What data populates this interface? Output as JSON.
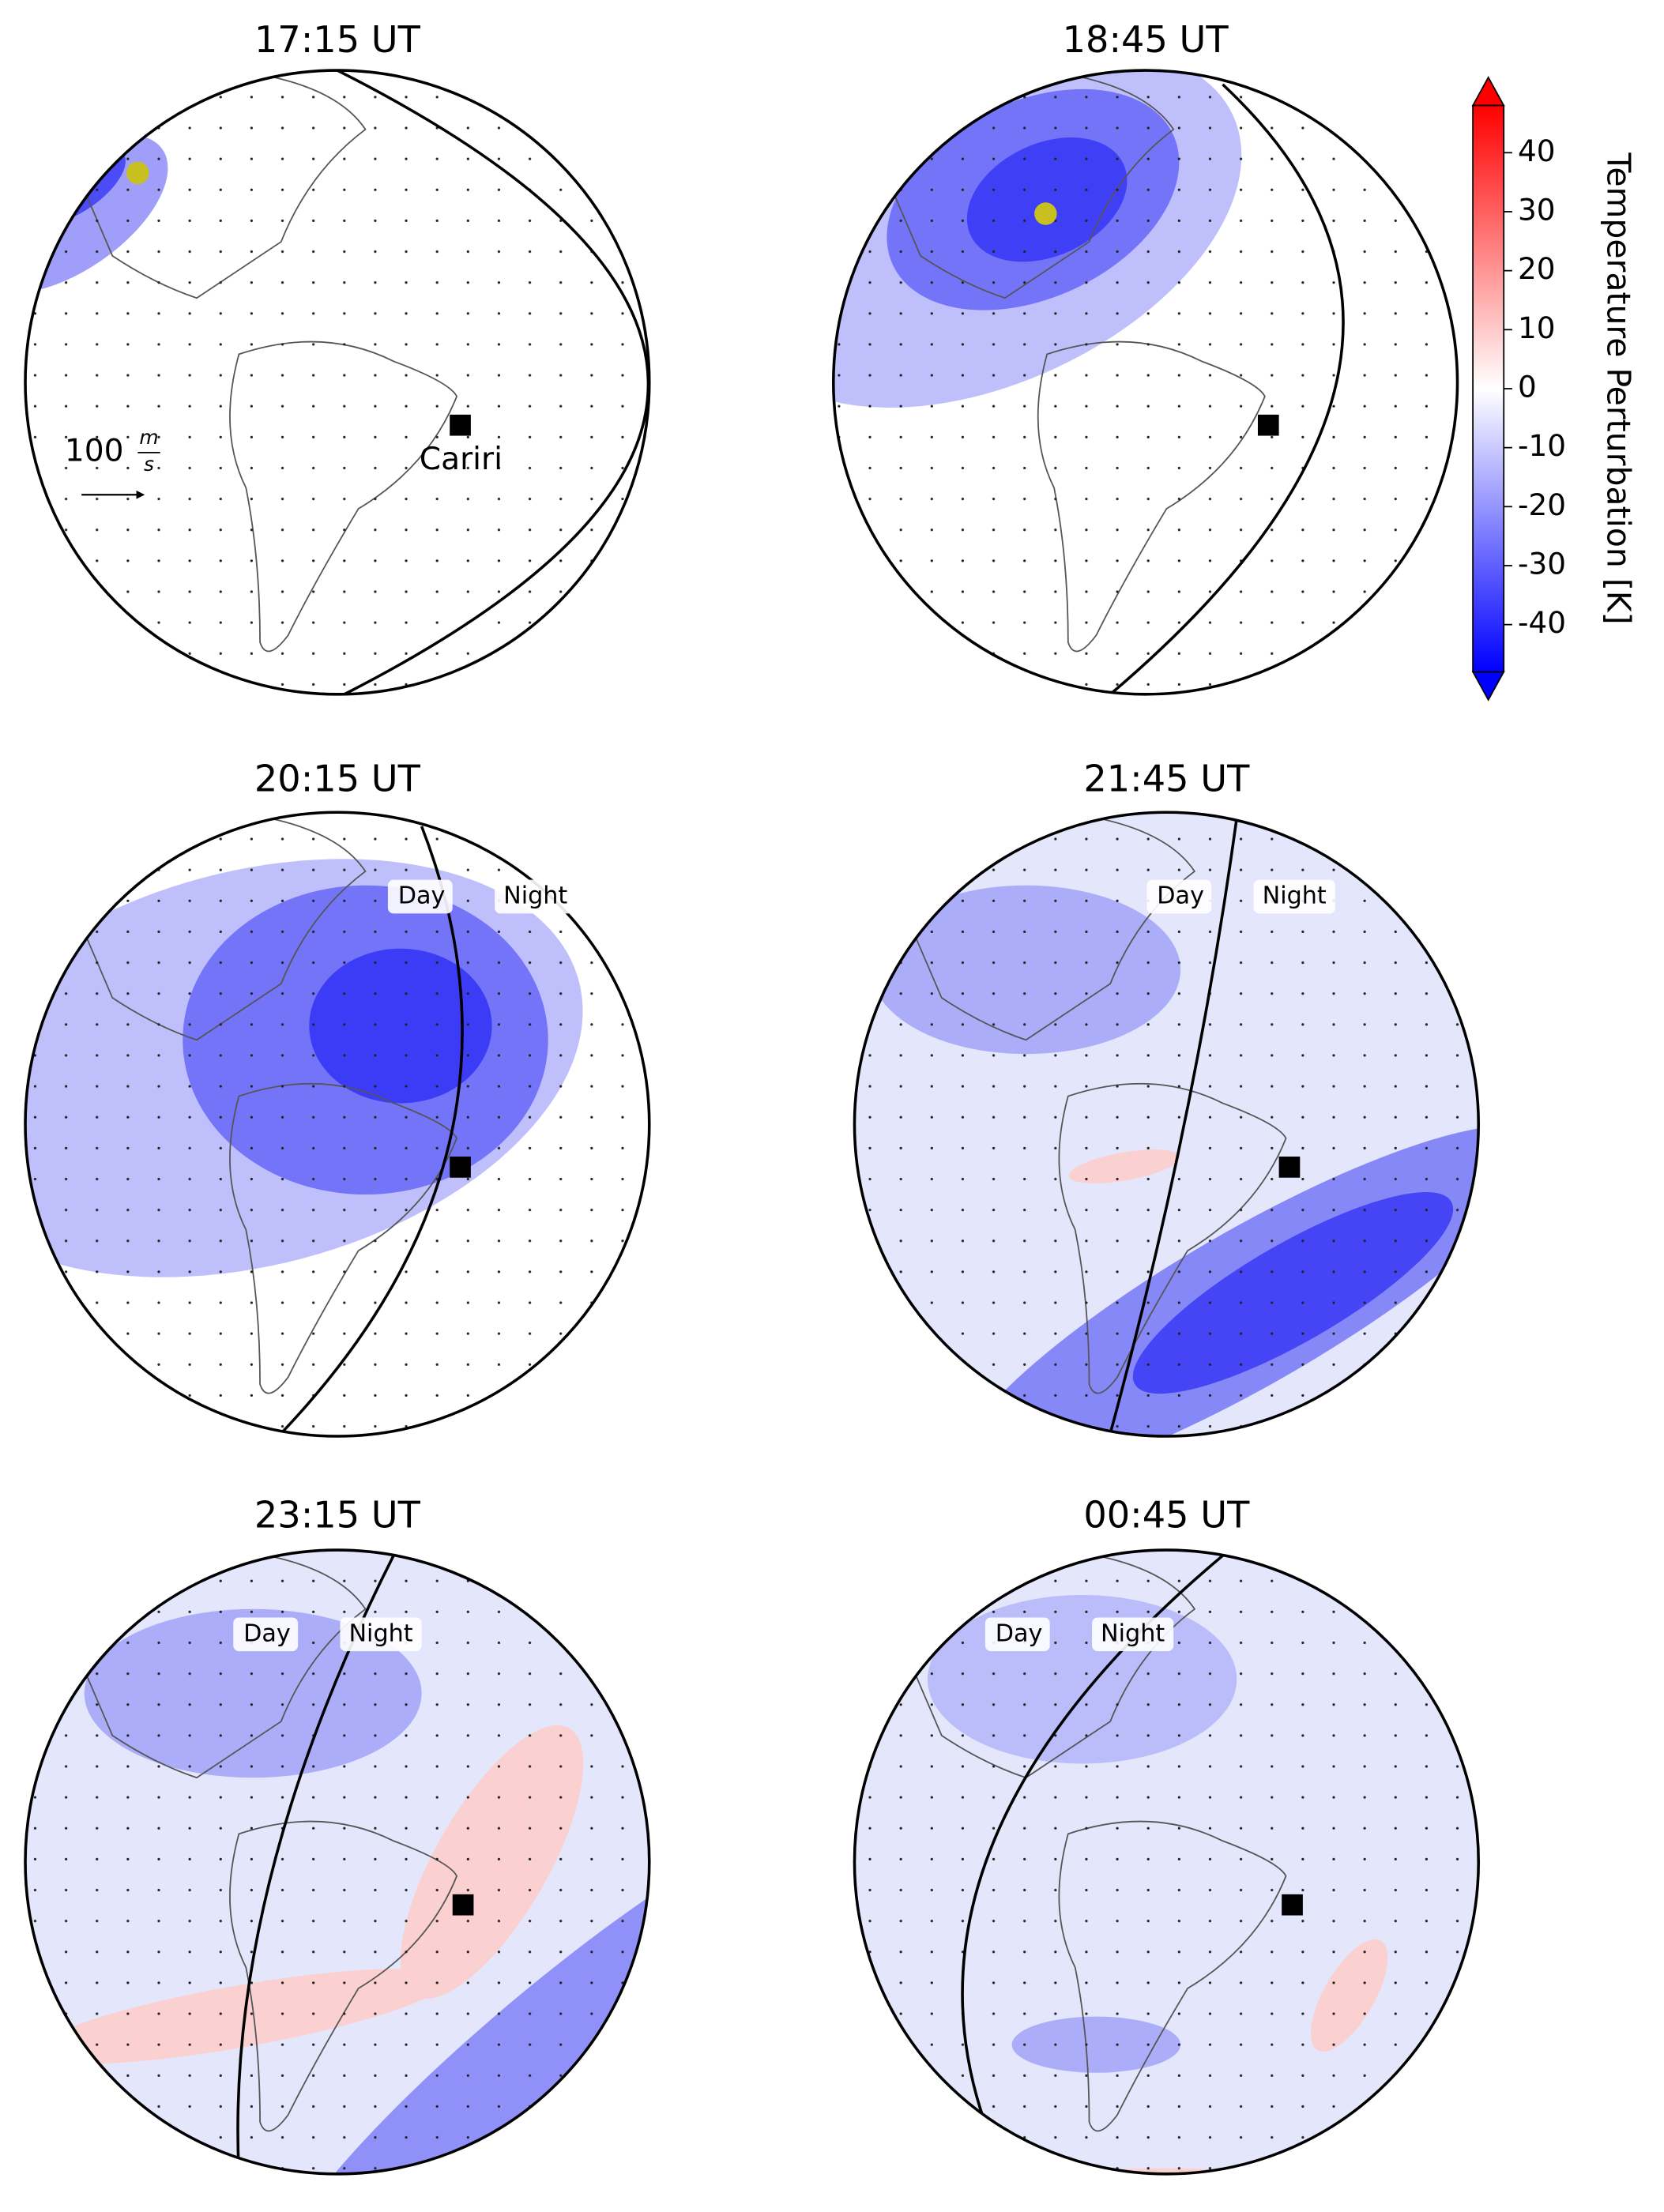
{
  "panels": [
    {
      "title": "17:15 UT"
    },
    {
      "title": "18:45 UT"
    },
    {
      "title": "20:15 UT"
    },
    {
      "title": "21:45 UT"
    },
    {
      "title": "23:15 UT"
    },
    {
      "title": "00:45 UT"
    }
  ],
  "labels": {
    "station": "Cariri",
    "day": "Day",
    "night": "Night",
    "scale_value": "100",
    "scale_num": "m",
    "scale_den": "s"
  },
  "colorbar": {
    "label": "Temperature Perturbation [K]",
    "lim": [
      -48,
      48
    ],
    "ticks": [
      -40,
      -30,
      -20,
      -10,
      0,
      10,
      20,
      30,
      40
    ],
    "colors": [
      "#0000ff",
      "#ffffff",
      "#ff0000"
    ]
  }
}
